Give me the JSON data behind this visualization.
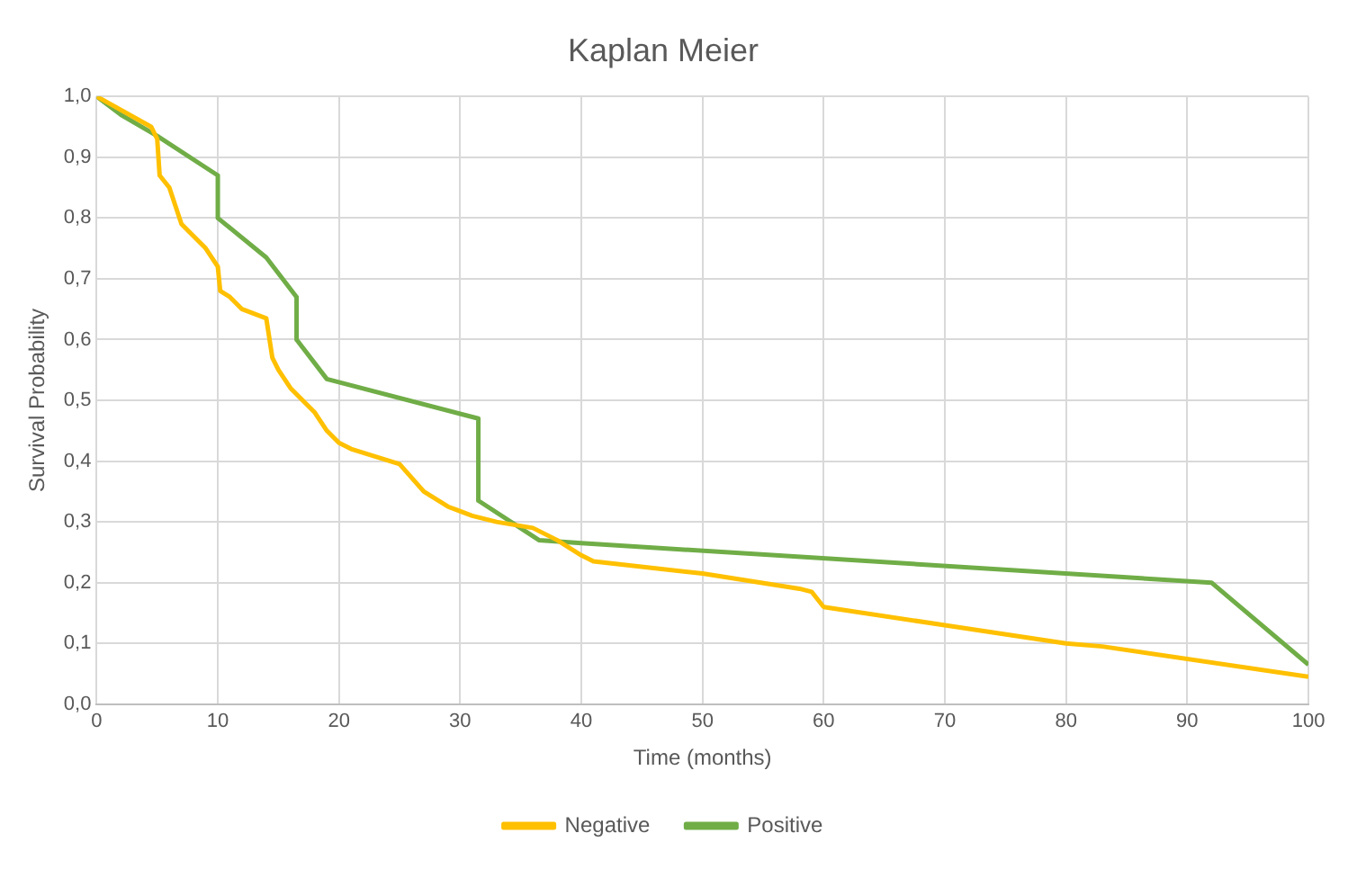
{
  "chart_data": {
    "type": "line",
    "title": "Kaplan Meier",
    "xlabel": "Time (months)",
    "ylabel": "Survival Probability",
    "xlim": [
      0,
      100
    ],
    "xticks": [
      0,
      10,
      20,
      30,
      40,
      50,
      60,
      70,
      80,
      90,
      100
    ],
    "ylim": [
      0,
      1
    ],
    "yticks": [
      {
        "value": 0,
        "label": "0,0"
      },
      {
        "value": 0.1,
        "label": "0,1"
      },
      {
        "value": 0.2,
        "label": "0,2"
      },
      {
        "value": 0.3,
        "label": "0,3"
      },
      {
        "value": 0.4,
        "label": "0,4"
      },
      {
        "value": 0.5,
        "label": "0,5"
      },
      {
        "value": 0.6,
        "label": "0,6"
      },
      {
        "value": 0.7,
        "label": "0,7"
      },
      {
        "value": 0.8,
        "label": "0,8"
      },
      {
        "value": 0.9,
        "label": "0,9"
      },
      {
        "value": 1,
        "label": "1,0"
      }
    ],
    "grid": true,
    "legend": "bottom",
    "marker": "none",
    "line_style": "solid",
    "series": [
      {
        "name": "Negative",
        "color": "#ffc000",
        "x": [
          0,
          4.5,
          5,
          5.2,
          6,
          7,
          9,
          10,
          10.2,
          11,
          12,
          14,
          14.5,
          15,
          16,
          18,
          19,
          20,
          21,
          25,
          27,
          29,
          31,
          33,
          36,
          38,
          40,
          41,
          50,
          58,
          59,
          60,
          70,
          80,
          83,
          100
        ],
        "values": [
          1.0,
          0.95,
          0.93,
          0.87,
          0.85,
          0.79,
          0.75,
          0.72,
          0.68,
          0.67,
          0.65,
          0.635,
          0.57,
          0.55,
          0.52,
          0.48,
          0.45,
          0.43,
          0.42,
          0.395,
          0.35,
          0.325,
          0.31,
          0.3,
          0.29,
          0.27,
          0.245,
          0.235,
          0.215,
          0.19,
          0.185,
          0.16,
          0.13,
          0.1,
          0.095,
          0.045
        ]
      },
      {
        "name": "Positive",
        "color": "#70ad47",
        "x": [
          0,
          2,
          5,
          10,
          10,
          14,
          16.5,
          16.5,
          19,
          31.5,
          31.5,
          36.5,
          40,
          92,
          100
        ],
        "values": [
          1.0,
          0.97,
          0.935,
          0.87,
          0.8,
          0.735,
          0.67,
          0.6,
          0.535,
          0.47,
          0.335,
          0.27,
          0.265,
          0.2,
          0.065
        ]
      }
    ]
  }
}
